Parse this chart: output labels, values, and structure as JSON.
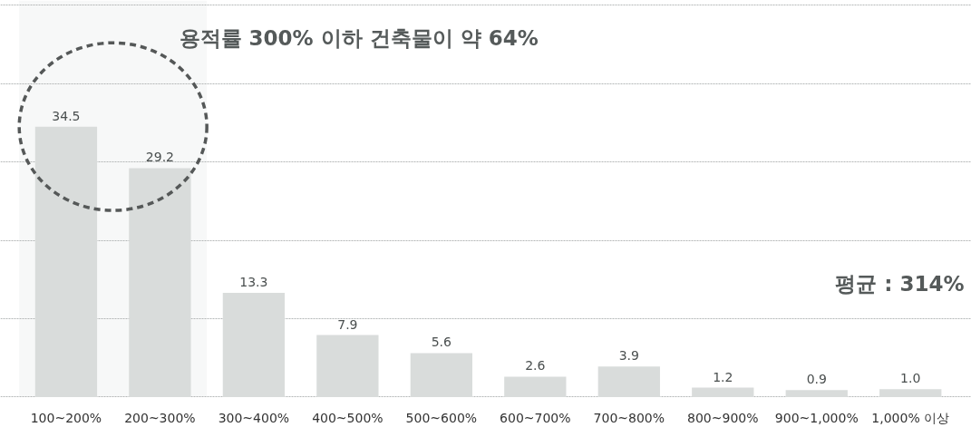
{
  "chart_data": {
    "type": "bar",
    "categories": [
      "100~200%",
      "200~300%",
      "300~400%",
      "400~500%",
      "500~600%",
      "600~700%",
      "700~800%",
      "800~900%",
      "900~1,000%",
      "1,000% 이상"
    ],
    "values": [
      34.5,
      29.2,
      13.3,
      7.9,
      5.6,
      2.6,
      3.9,
      1.2,
      0.9,
      1.0
    ],
    "value_labels": [
      "34.5",
      "29.2",
      "13.3",
      "7.9",
      "5.6",
      "2.6",
      "3.9",
      "1.2",
      "0.9",
      "1.0"
    ],
    "color": "#d9dcdb",
    "ylim": [
      -0.3,
      50.6
    ],
    "yticks": [
      0,
      10,
      20,
      30,
      40,
      50
    ],
    "grid": "y",
    "tick_labels": "x",
    "bands": [
      {
        "axis": "x",
        "from": "100~200%",
        "to": "200~300%",
        "color": "#f7f8f8"
      }
    ],
    "annotations": [
      "용적률 300% 이하 건축물이 약 64%",
      "평균 : 314%"
    ]
  }
}
